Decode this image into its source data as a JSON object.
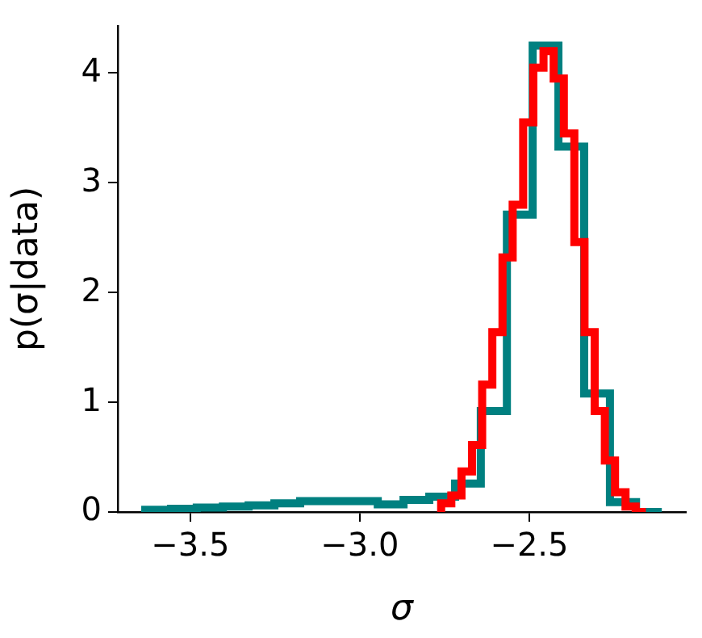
{
  "chart_data": {
    "type": "step",
    "xlabel": "σ",
    "ylabel": "p(σ|data)",
    "series": [
      {
        "color": "#008080",
        "x": [
          -3.633,
          -3.557,
          -3.481,
          -3.404,
          -3.328,
          -3.252,
          -3.176,
          -3.1,
          -3.023,
          -2.947,
          -2.871,
          -2.795,
          -2.719,
          -2.643,
          -2.566,
          -2.49,
          -2.414,
          -2.338,
          -2.262,
          -2.185,
          -2.109
        ],
        "values": [
          0.02,
          0.02,
          0.03,
          0.04,
          0.05,
          0.06,
          0.08,
          0.1,
          0.1,
          0.1,
          0.07,
          0.11,
          0.14,
          0.26,
          0.92,
          2.71,
          4.25,
          3.33,
          1.08,
          0.09,
          0
        ]
      },
      {
        "color": "#ff0000",
        "x": [
          -2.76,
          -2.73,
          -2.7,
          -2.669,
          -2.639,
          -2.609,
          -2.579,
          -2.549,
          -2.518,
          -2.488,
          -2.458,
          -2.428,
          -2.398,
          -2.367,
          -2.337,
          -2.307,
          -2.277,
          -2.247,
          -2.216,
          -2.186,
          -2.156
        ],
        "values": [
          0.03,
          0.08,
          0.15,
          0.37,
          0.61,
          1.16,
          1.64,
          2.32,
          2.8,
          3.55,
          4.05,
          4.2,
          3.95,
          3.45,
          2.46,
          1.64,
          0.92,
          0.47,
          0.18,
          0.05,
          0
        ]
      }
    ],
    "xlim": [
      -3.714,
      -2.038
    ],
    "xticks": [
      {
        "value": -3.5,
        "label": "−3.5"
      },
      {
        "value": -3.0,
        "label": "−3.0"
      },
      {
        "value": -2.5,
        "label": "−2.5"
      }
    ],
    "ylim": [
      0,
      4.43
    ],
    "yticks": [
      0,
      1,
      2,
      3,
      4
    ],
    "grid": false,
    "legend": false
  }
}
